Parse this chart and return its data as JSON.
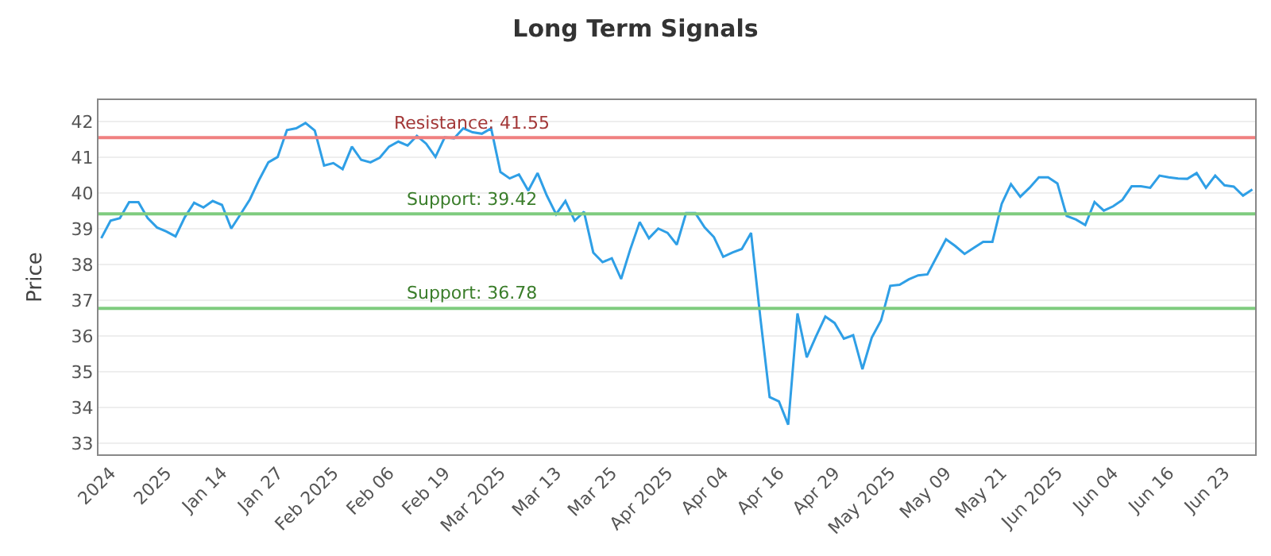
{
  "chart_data": {
    "type": "line",
    "title": "Long Term Signals",
    "ylabel": "Price",
    "categories": [
      null,
      "2024",
      null,
      null,
      null,
      null,
      null,
      "2025",
      null,
      null,
      null,
      null,
      null,
      "Jan 14",
      null,
      null,
      null,
      null,
      null,
      "Jan 27",
      null,
      null,
      null,
      null,
      null,
      "Feb 2025",
      null,
      null,
      null,
      null,
      null,
      "Feb 06",
      null,
      null,
      null,
      null,
      null,
      "Feb 19",
      null,
      null,
      null,
      null,
      null,
      "Mar 2025",
      null,
      null,
      null,
      null,
      null,
      "Mar 13",
      null,
      null,
      null,
      null,
      null,
      "Mar 25",
      null,
      null,
      null,
      null,
      null,
      "Apr 2025",
      null,
      null,
      null,
      null,
      null,
      "Apr 04",
      null,
      null,
      null,
      null,
      null,
      "Apr 16",
      null,
      null,
      null,
      null,
      null,
      "Apr 29",
      null,
      null,
      null,
      null,
      null,
      "May 2025",
      null,
      null,
      null,
      null,
      null,
      "May 09",
      null,
      null,
      null,
      null,
      null,
      "May 21",
      null,
      null,
      null,
      null,
      null,
      "Jun 2025",
      null,
      null,
      null,
      null,
      null,
      "Jun 04",
      null,
      null,
      null,
      null,
      null,
      "Jun 16",
      null,
      null,
      null,
      null,
      null,
      "Jun 23",
      null,
      null,
      null
    ],
    "ylim": [
      32.7,
      42.6
    ],
    "yticks": [
      33,
      34,
      35,
      36,
      37,
      38,
      39,
      40,
      41,
      42
    ],
    "grid": "y",
    "marker": "none",
    "line_style": "solid",
    "series": [
      {
        "color": "#2f9fe6",
        "values": [
          38.74,
          39.23,
          39.3,
          39.75,
          39.75,
          39.3,
          39.04,
          38.93,
          38.79,
          39.33,
          39.73,
          39.6,
          39.78,
          39.67,
          39.01,
          39.41,
          39.82,
          40.37,
          40.86,
          41.01,
          41.76,
          41.81,
          41.96,
          41.75,
          40.77,
          40.84,
          40.67,
          41.3,
          40.93,
          40.86,
          40.99,
          41.3,
          41.44,
          41.33,
          41.6,
          41.38,
          41.01,
          41.56,
          41.53,
          41.81,
          41.7,
          41.66,
          41.81,
          40.59,
          40.41,
          40.52,
          40.07,
          40.56,
          39.93,
          39.41,
          39.78,
          39.23,
          39.48,
          38.34,
          38.07,
          38.18,
          37.6,
          38.44,
          39.19,
          38.74,
          39.01,
          38.89,
          38.56,
          39.44,
          39.44,
          39.04,
          38.77,
          38.22,
          38.34,
          38.44,
          38.89,
          36.52,
          34.3,
          34.18,
          33.53,
          36.64,
          35.41,
          36.0,
          36.55,
          36.37,
          35.93,
          36.03,
          35.08,
          35.96,
          36.44,
          37.41,
          37.44,
          37.59,
          37.7,
          37.73,
          38.22,
          38.71,
          38.52,
          38.3,
          38.47,
          38.64,
          38.64,
          39.7,
          40.25,
          39.9,
          40.15,
          40.44,
          40.44,
          40.27,
          39.36,
          39.26,
          39.11,
          39.75,
          39.51,
          39.63,
          39.81,
          40.19,
          40.19,
          40.15,
          40.49,
          40.44,
          40.41,
          40.4,
          40.56,
          40.15,
          40.49,
          40.22,
          40.18,
          39.93,
          40.1
        ]
      }
    ],
    "ref_lines": [
      {
        "axis": "y",
        "value": 41.55,
        "label": "Resistance: 41.55",
        "color": "#f08080"
      },
      {
        "axis": "y",
        "value": 39.42,
        "label": "Support: 39.42",
        "color": "#7fcc7f"
      },
      {
        "axis": "y",
        "value": 36.78,
        "label": "Support: 36.78",
        "color": "#7fcc7f"
      }
    ]
  }
}
